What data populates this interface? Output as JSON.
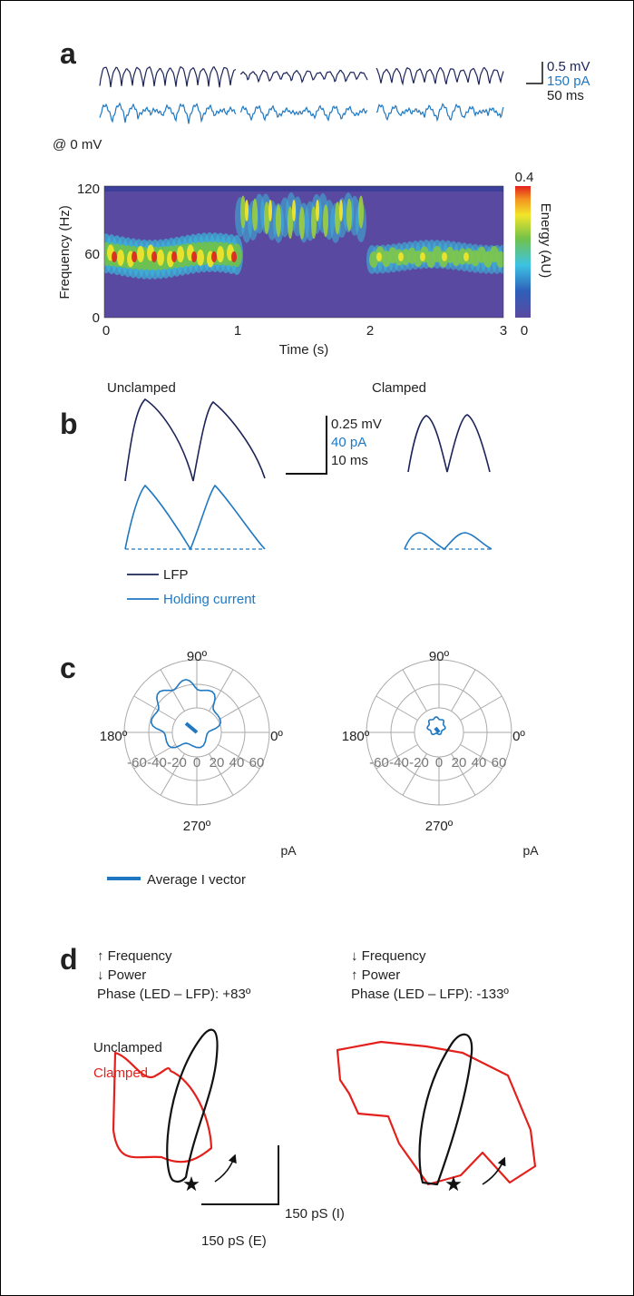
{
  "panels": {
    "a": {
      "label": "a",
      "scale_bar": {
        "voltage": "0.5 mV",
        "current": "150 pA",
        "time": "50 ms"
      },
      "holding": "@ 0 mV",
      "spectrogram": {
        "y_label": "Frequency (Hz)",
        "x_label": "Time (s)",
        "yticks": [
          120,
          60,
          0
        ],
        "xticks": [
          0,
          1,
          2,
          3
        ],
        "colorbar_label": "Energy (AU)",
        "colorbar_ticks": [
          0.4,
          0
        ]
      }
    },
    "b": {
      "label": "b",
      "left_title": "Unclamped",
      "right_title": "Clamped",
      "scale_bar": {
        "voltage": "0.25 mV",
        "current": "40 pA",
        "time": "10 ms"
      },
      "legend": [
        "LFP",
        "Holding current"
      ]
    },
    "c": {
      "label": "c",
      "polar": [
        {
          "angle_labels": [
            "90º",
            "180º",
            "0º",
            "270º"
          ],
          "radial_ticks": [
            -60,
            -40,
            -20,
            0,
            20,
            40,
            60
          ],
          "unit": "pA"
        },
        {
          "angle_labels": [
            "90º",
            "180º",
            "0º",
            "270º"
          ],
          "radial_ticks": [
            -60,
            -40,
            -20,
            0,
            20,
            40,
            60
          ],
          "unit": "pA"
        }
      ],
      "legend": "Average I vector"
    },
    "d": {
      "label": "d",
      "left_notes": [
        "↑ Frequency",
        "↓ Power",
        "Phase (LED – LFP): +83º"
      ],
      "right_notes": [
        "↓ Frequency",
        "↑ Power",
        "Phase (LED – LFP): -133º"
      ],
      "legend": [
        "Unclamped",
        "Clamped"
      ],
      "scale_bar": {
        "inhibitory": "150 pS (I)",
        "excitatory": "150 pS (E)"
      }
    }
  }
}
